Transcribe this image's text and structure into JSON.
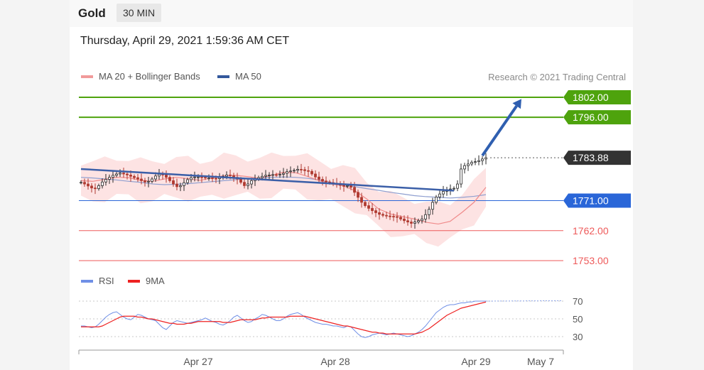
{
  "header": {
    "instrument": "Gold",
    "timeframe": "30 MIN"
  },
  "datetime": "Thursday, April 29, 2021 1:59:36 AM CET",
  "legend": {
    "main": [
      {
        "label": "MA 20 + Bollinger Bands",
        "color": "#f19a9a"
      },
      {
        "label": "MA 50",
        "color": "#33589c"
      }
    ],
    "rsi": [
      {
        "label": "RSI",
        "color": "#6f8fe6"
      },
      {
        "label": "9MA",
        "color": "#ee2222"
      }
    ]
  },
  "credit": "Research © 2021 Trading Central",
  "chart_data": [
    {
      "type": "line",
      "title": "",
      "ylim": [
        1749,
        1807
      ],
      "x_ticks": [
        "Apr 27",
        "Apr 28",
        "Apr 29",
        "May 7"
      ],
      "levels": [
        {
          "value": 1802.0,
          "label": "1802.00",
          "kind": "resistance",
          "color": "#4ea30d",
          "tag": "box"
        },
        {
          "value": 1796.0,
          "label": "1796.00",
          "kind": "resistance",
          "color": "#4ea30d",
          "tag": "box"
        },
        {
          "value": 1783.88,
          "label": "1783.88",
          "kind": "last-price",
          "color": "#333333",
          "tag": "box"
        },
        {
          "value": 1771.0,
          "label": "1771.00",
          "kind": "pivot",
          "color": "#2a66d8",
          "tag": "box"
        },
        {
          "value": 1762.0,
          "label": "1762.00",
          "kind": "support",
          "color": "#ee5a5a",
          "tag": "text"
        },
        {
          "value": 1753.0,
          "label": "1753.00",
          "kind": "support",
          "color": "#ee5a5a",
          "tag": "text"
        }
      ],
      "series": [
        {
          "kind": "price",
          "x_start": 0,
          "values": [
            1776.5,
            1776.0,
            1775.4,
            1774.8,
            1774.6,
            1775.5,
            1776.6,
            1777.4,
            1778.0,
            1778.6,
            1779.0,
            1779.3,
            1779.0,
            1778.7,
            1778.3,
            1777.9,
            1777.5,
            1777.0,
            1776.6,
            1776.8,
            1777.5,
            1778.4,
            1778.9,
            1778.7,
            1778.0,
            1777.0,
            1776.0,
            1775.2,
            1775.5,
            1776.4,
            1777.3,
            1777.9,
            1778.1,
            1778.1,
            1778.0,
            1777.8,
            1777.8,
            1777.7,
            1777.6,
            1777.9,
            1778.3,
            1778.7,
            1778.5,
            1778.0,
            1777.5,
            1776.5,
            1775.5,
            1776.0,
            1777.0,
            1777.5,
            1777.9,
            1778.3,
            1778.6,
            1778.7,
            1778.8,
            1778.7,
            1778.9,
            1779.2,
            1779.7,
            1779.9,
            1780.1,
            1780.4,
            1780.3,
            1780.0,
            1779.8,
            1779.0,
            1778.1,
            1777.4,
            1776.9,
            1776.6,
            1776.4,
            1776.2,
            1776.0,
            1775.6,
            1775.3,
            1775.5,
            1775.0,
            1773.5,
            1772.0,
            1770.5,
            1769.5,
            1768.7,
            1768.0,
            1767.4,
            1766.9,
            1766.6,
            1766.4,
            1766.3,
            1766.2,
            1766.0,
            1765.5,
            1765.0,
            1764.6,
            1764.2,
            1764.6,
            1765.0,
            1765.5,
            1766.8,
            1768.4,
            1770.5,
            1772.1,
            1773.0,
            1773.8,
            1774.3,
            1774.5,
            1774.7,
            1776.0,
            1780.5,
            1781.5,
            1782.0,
            1782.5,
            1782.7,
            1783.0,
            1783.5,
            1783.88
          ]
        },
        {
          "kind": "MA 50",
          "x_start": 0,
          "values": [
            1778.0,
            1777.8,
            1777.5,
            1777.2,
            1776.8,
            1776.5,
            1776.0,
            1775.8,
            1775.9,
            1776.1,
            1776.4,
            1776.7,
            1777.0,
            1777.3,
            1777.6,
            1777.8,
            1778.0,
            1778.1,
            1778.0,
            1777.7,
            1777.2,
            1776.5,
            1775.8,
            1775.2,
            1774.6,
            1774.1,
            1773.5,
            1773.0,
            1772.5,
            1772.2,
            1772.0,
            1771.8,
            1772.0,
            1772.3,
            1772.8
          ]
        },
        {
          "kind": "MA 20",
          "x_start": 0,
          "values": [
            1777.0,
            1776.8,
            1777.4,
            1778.0,
            1777.9,
            1777.1,
            1776.8,
            1777.5,
            1778.0,
            1777.6,
            1777.1,
            1777.8,
            1778.5,
            1778.6,
            1778.2,
            1777.7,
            1778.6,
            1779.5,
            1779.4,
            1778.3,
            1777.0,
            1776.0,
            1775.5,
            1774.0,
            1771.5,
            1768.5,
            1767.0,
            1766.2,
            1765.5,
            1764.5,
            1764.0,
            1764.8,
            1767.5,
            1770.5,
            1775.0
          ]
        }
      ],
      "annotations": [
        {
          "kind": "trendline",
          "from": [
            0,
            1780.5
          ],
          "to": [
            105,
            1774.0
          ]
        },
        {
          "kind": "forecast-arrow",
          "from": [
            113,
            1784.5
          ],
          "to": [
            124,
            1801.5
          ]
        }
      ]
    },
    {
      "type": "line",
      "title": "",
      "ylim": [
        20,
        80
      ],
      "y_ticks": [
        30,
        50,
        70
      ],
      "x_ticks": [
        "Apr 27",
        "Apr 28",
        "Apr 29",
        "May 7"
      ],
      "series": [
        {
          "name": "RSI",
          "values": [
            42,
            42,
            41,
            40,
            41,
            44,
            48,
            52,
            55,
            57,
            58,
            55,
            52,
            50,
            49,
            52,
            55,
            54,
            52,
            50,
            49,
            48,
            44,
            40,
            38,
            42,
            46,
            48,
            47,
            46,
            45,
            46,
            47,
            48,
            49,
            51,
            49,
            47,
            46,
            44,
            43,
            45,
            48,
            52,
            54,
            51,
            48,
            46,
            47,
            50,
            52,
            55,
            54,
            52,
            50,
            48,
            48,
            50,
            53,
            55,
            56,
            57,
            55,
            52,
            50,
            48,
            46,
            45,
            44,
            44,
            43,
            42,
            42,
            41,
            40,
            42,
            41,
            37,
            33,
            30,
            29,
            30,
            32,
            33,
            34,
            33,
            32,
            33,
            34,
            33,
            32,
            31,
            30,
            31,
            33,
            35,
            38,
            42,
            47,
            52,
            57,
            60,
            63,
            65,
            66,
            66,
            67,
            68,
            68,
            69,
            69,
            70,
            70,
            70,
            70
          ]
        },
        {
          "name": "9MA",
          "values": [
            41,
            41,
            41,
            41,
            41,
            41,
            42,
            44,
            46,
            48,
            50,
            52,
            53,
            53,
            53,
            53,
            52,
            52,
            51,
            50,
            50,
            49,
            48,
            47,
            46,
            45,
            45,
            44,
            44,
            44,
            45,
            45,
            46,
            47,
            47,
            47,
            47,
            47,
            47,
            47,
            46,
            46,
            46,
            47,
            48,
            49,
            49,
            49,
            49,
            49,
            50,
            51,
            51,
            52,
            52,
            52,
            52,
            52,
            52,
            53,
            53,
            53,
            53,
            53,
            52,
            51,
            50,
            49,
            48,
            47,
            46,
            45,
            44,
            43,
            42,
            42,
            41,
            40,
            39,
            38,
            37,
            36,
            35,
            35,
            34,
            34,
            33,
            33,
            33,
            33,
            33,
            33,
            33,
            33,
            33,
            34,
            35,
            37,
            39,
            42,
            45,
            48,
            51,
            54,
            56,
            58,
            60,
            62,
            63,
            64,
            65,
            66,
            67,
            68,
            69
          ]
        }
      ]
    }
  ]
}
